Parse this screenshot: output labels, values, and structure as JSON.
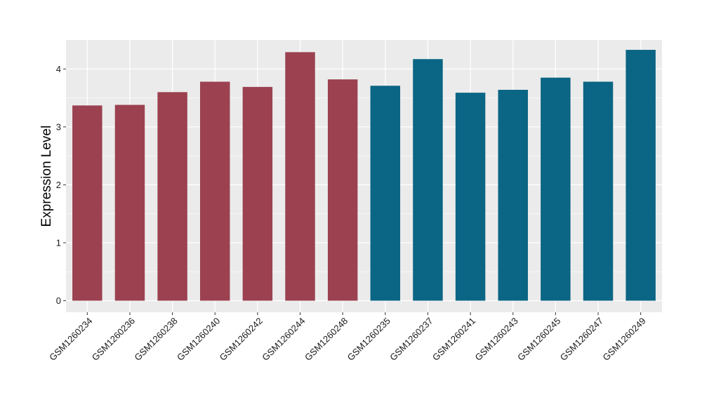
{
  "chart_data": {
    "type": "bar",
    "ylabel": "Expression Level",
    "xlabel": "",
    "ylim": [
      -0.2,
      4.5
    ],
    "yticks": [
      0,
      1,
      2,
      3,
      4
    ],
    "grid": true,
    "background_color": "#ebebeb",
    "grid_color": "#ffffff",
    "categories": [
      "GSM1260234",
      "GSM1260236",
      "GSM1260238",
      "GSM1260240",
      "GSM1260242",
      "GSM1260244",
      "GSM1260248",
      "GSM1260235",
      "GSM1260237",
      "GSM1260241",
      "GSM1260243",
      "GSM1260245",
      "GSM1260247",
      "GSM1260249"
    ],
    "values": [
      3.37,
      3.38,
      3.6,
      3.78,
      3.69,
      4.29,
      3.82,
      3.71,
      4.17,
      3.59,
      3.64,
      3.85,
      3.78,
      4.33
    ],
    "bar_colors": [
      "#9b4150",
      "#9b4150",
      "#9b4150",
      "#9b4150",
      "#9b4150",
      "#9b4150",
      "#9b4150",
      "#0b6584",
      "#0b6584",
      "#0b6584",
      "#0b6584",
      "#0b6584",
      "#0b6584",
      "#0b6584"
    ]
  }
}
